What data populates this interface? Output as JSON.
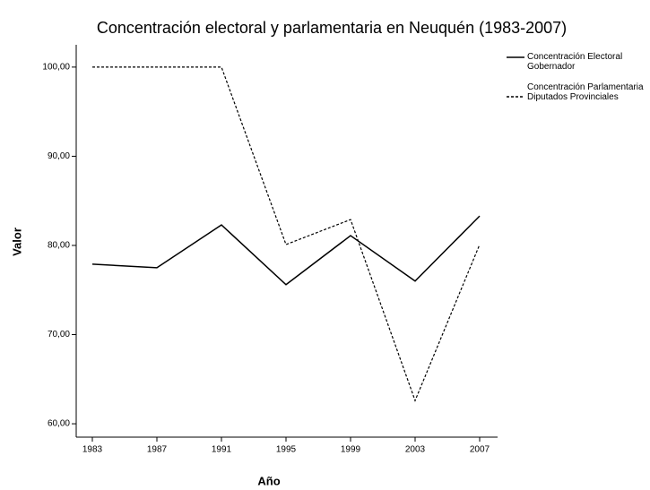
{
  "chart_data": {
    "type": "line",
    "title": "Concentración electoral y parlamentaria en Neuquén (1983-2007)",
    "x_label": "Año",
    "y_label": "Valor",
    "categories": [
      "1983",
      "1987",
      "1991",
      "1995",
      "1999",
      "2003",
      "2007"
    ],
    "series": [
      {
        "name": "Concentración Electoral Gobernador",
        "color": "#000000",
        "dash": "solid",
        "values": [
          77.9,
          77.5,
          82.3,
          75.6,
          81.1,
          76.0,
          83.3
        ]
      },
      {
        "name": "Concentración Parlamentaria Diputados Provinciales",
        "color": "#000000",
        "dash": "dashed",
        "values": [
          100,
          100,
          100,
          80.1,
          82.9,
          62.6,
          80.1
        ]
      }
    ],
    "ylim": [
      58.5,
      102.5
    ],
    "yticks": [
      {
        "value": 60,
        "label": "60,00"
      },
      {
        "value": 70,
        "label": "70,00"
      },
      {
        "value": 80,
        "label": "80,00"
      },
      {
        "value": 90,
        "label": "90,00"
      },
      {
        "value": 100,
        "label": "100,00"
      }
    ],
    "legend": "right"
  }
}
